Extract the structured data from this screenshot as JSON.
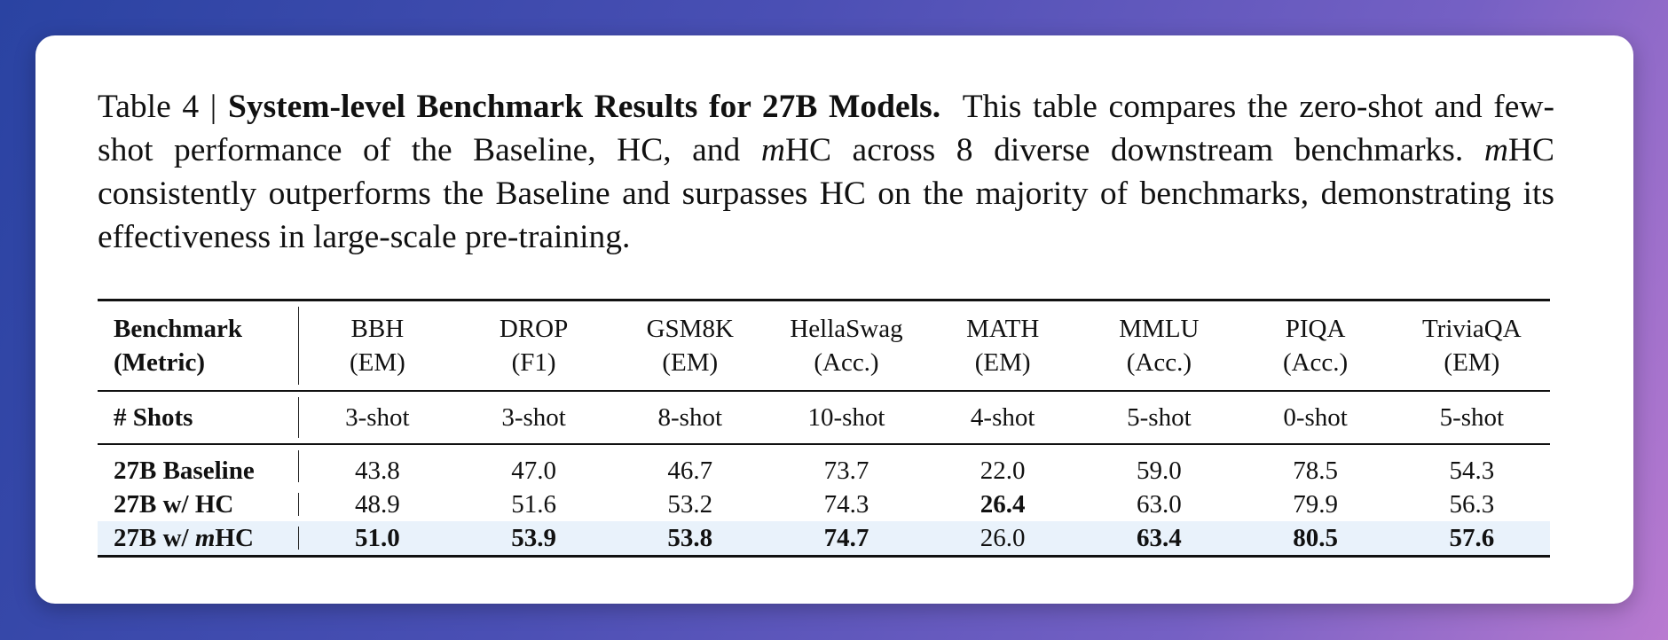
{
  "caption": {
    "label": "Table 4 |",
    "title": "System-level Benchmark Results for 27B Models.",
    "body": [
      "This table compares the zero-shot and few-shot performance of the Baseline, HC, and ",
      "m",
      "HC across 8 diverse downstream benchmarks. ",
      "m",
      "HC consistently outperforms the Baseline and surpasses HC on the majority of benchmarks, demonstrating its effectiveness in large-scale pre-training."
    ]
  },
  "table": {
    "header": {
      "label": [
        "Benchmark",
        "(Metric)"
      ],
      "columns": [
        {
          "name": "BBH",
          "metric": "(EM)"
        },
        {
          "name": "DROP",
          "metric": "(F1)"
        },
        {
          "name": "GSM8K",
          "metric": "(EM)"
        },
        {
          "name": "HellaSwag",
          "metric": "(Acc.)"
        },
        {
          "name": "MATH",
          "metric": "(EM)"
        },
        {
          "name": "MMLU",
          "metric": "(Acc.)"
        },
        {
          "name": "PIQA",
          "metric": "(Acc.)"
        },
        {
          "name": "TriviaQA",
          "metric": "(EM)"
        }
      ]
    },
    "shots": {
      "label": "# Shots",
      "values": [
        "3-shot",
        "3-shot",
        "8-shot",
        "10-shot",
        "4-shot",
        "5-shot",
        "0-shot",
        "5-shot"
      ]
    },
    "rows": [
      {
        "model": [
          "27B Baseline"
        ],
        "values": [
          "43.8",
          "47.0",
          "46.7",
          "73.7",
          "22.0",
          "59.0",
          "78.5",
          "54.3"
        ],
        "bold": [],
        "highlight": false
      },
      {
        "model": [
          "27B w/ HC"
        ],
        "values": [
          "48.9",
          "51.6",
          "53.2",
          "74.3",
          "26.4",
          "63.0",
          "79.9",
          "56.3"
        ],
        "bold": [
          4
        ],
        "highlight": false
      },
      {
        "model": [
          "27B w/ ",
          "m",
          "HC"
        ],
        "values": [
          "51.0",
          "53.9",
          "53.8",
          "74.7",
          "26.0",
          "63.4",
          "80.5",
          "57.6"
        ],
        "bold": [
          0,
          1,
          2,
          3,
          5,
          6,
          7
        ],
        "highlight": true
      }
    ]
  }
}
